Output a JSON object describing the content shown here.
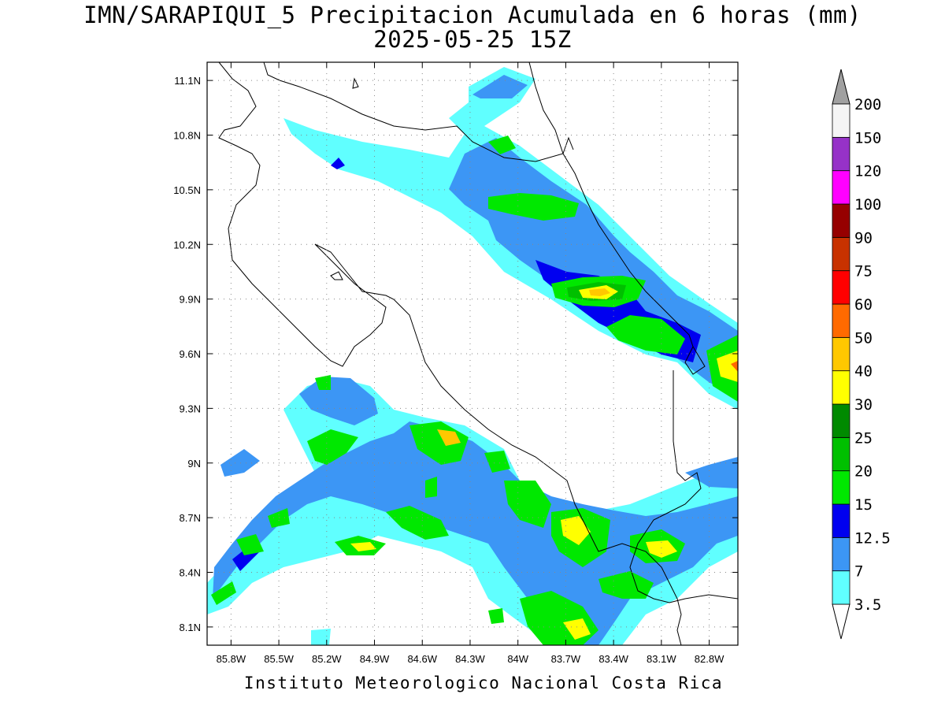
{
  "title_line1": "IMN/SARAPIQUI_5 Precipitacion Acumulada en 6 horas (mm)",
  "title_line2": "2025-05-25 15Z",
  "footer": "Instituto Meteorologico Nacional Costa Rica",
  "map": {
    "lon_range": [
      -85.95,
      -82.62
    ],
    "lat_range": [
      8.0,
      11.2
    ],
    "lon_ticks": [
      "85.8W",
      "85.5W",
      "85.2W",
      "84.9W",
      "84.6W",
      "84.3W",
      "84W",
      "83.7W",
      "83.4W",
      "83.1W",
      "82.8W"
    ],
    "lat_ticks": [
      "11.1N",
      "10.8N",
      "10.5N",
      "10.2N",
      "9.9N",
      "9.6N",
      "9.3N",
      "9N",
      "8.7N",
      "8.4N",
      "8.1N"
    ],
    "grid": "dotted"
  },
  "colorbar": {
    "labels": [
      "3.5",
      "7",
      "12.5",
      "15",
      "20",
      "25",
      "30",
      "40",
      "50",
      "60",
      "75",
      "90",
      "100",
      "120",
      "150",
      "200"
    ],
    "colors": [
      "#60ffff",
      "#3c96f5",
      "#0000f0",
      "#00e800",
      "#00c000",
      "#008a00",
      "#ffff00",
      "#ffc800",
      "#ff6a00",
      "#ff0000",
      "#c83200",
      "#960000",
      "#ff00ff",
      "#9632c8",
      "#f5f5f5"
    ],
    "over_color": "#a0a0a0",
    "under_color": "#ffffff"
  }
}
